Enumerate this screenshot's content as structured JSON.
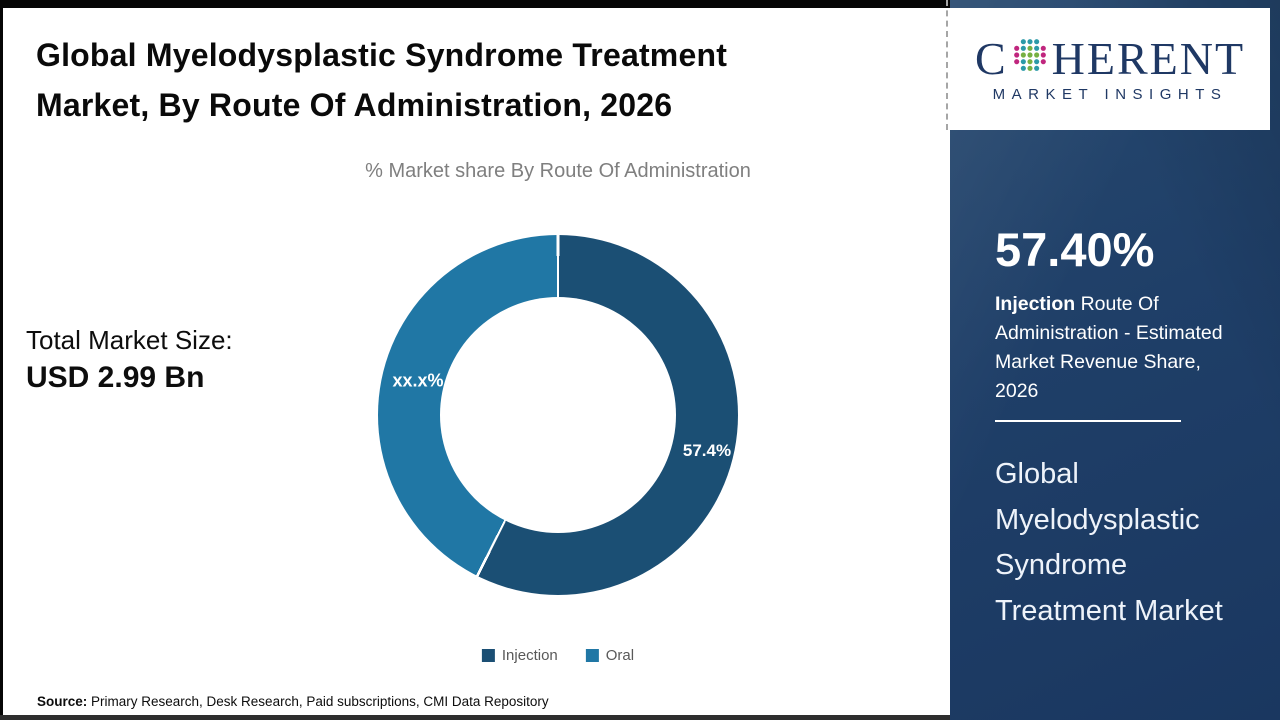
{
  "header": {
    "title_line1": "Global Myelodysplastic Syndrome Treatment",
    "title_line2": "Market, By Route Of Administration, 2026"
  },
  "chart_data": {
    "type": "pie",
    "subtype": "donut",
    "title": "% Market share By Route Of Administration",
    "categories": [
      "Injection",
      "Oral"
    ],
    "values": [
      57.4,
      42.6
    ],
    "display_labels": [
      "57.4%",
      "xx.x%"
    ],
    "colors": [
      "#1b4f74",
      "#2077a5"
    ],
    "legend_position": "bottom",
    "start_angle_deg": 0,
    "direction": "clockwise",
    "hole_ratio": 0.655
  },
  "totals": {
    "label": "Total Market Size:",
    "value": "USD 2.99 Bn"
  },
  "source": {
    "label": "Source:",
    "text": " Primary Research, Desk Research, Paid subscriptions, CMI Data Repository"
  },
  "sidebar": {
    "logo": {
      "brand_c": "C",
      "brand_rest": "HERENT",
      "tagline": "MARKET INSIGHTS",
      "globe_icon": "dotted-globe"
    },
    "stat_value": "57.40%",
    "stat_category": "Injection",
    "stat_description": " Route Of Administration - Estimated Market Revenue Share, 2026",
    "market_name": "Global Myelodysplastic Syndrome Treatment Market"
  },
  "colors": {
    "injection": "#1b4f74",
    "oral": "#2077a5",
    "sidebar_navy": "#1f3f68",
    "logo_navy": "#1f3864",
    "subtitle_gray": "#7f7f7f",
    "legend_gray": "#595959"
  }
}
